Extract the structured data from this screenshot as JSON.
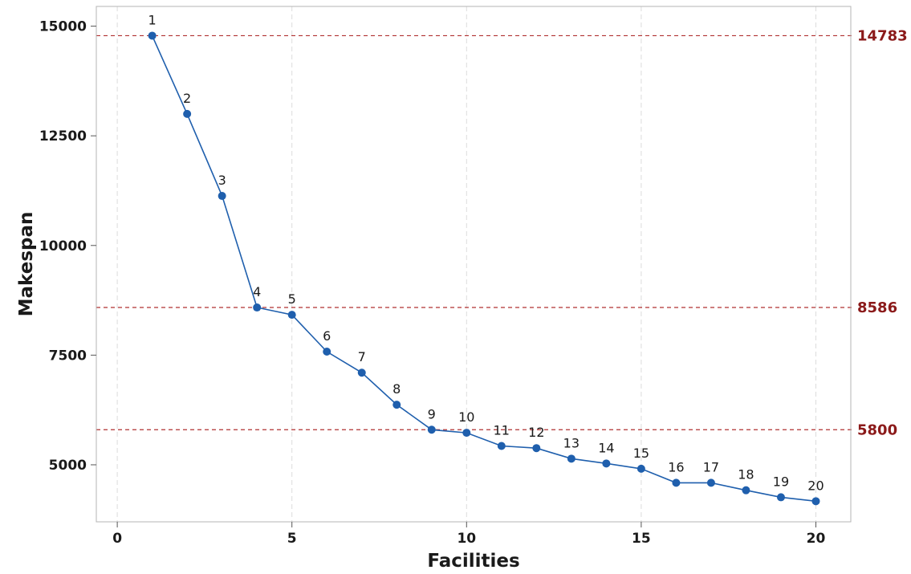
{
  "chart_data": {
    "type": "line",
    "title": "",
    "xlabel": "Facilities",
    "ylabel": "Makespan",
    "xlim": [
      -0.6,
      21.0
    ],
    "ylim": [
      3700,
      15450
    ],
    "x_ticks": [
      0,
      5,
      10,
      15,
      20
    ],
    "x_tick_labels": [
      "0",
      "5",
      "10",
      "15",
      "20"
    ],
    "y_ticks": [
      5000,
      7500,
      10000,
      12500,
      15000
    ],
    "y_tick_labels": [
      "5000",
      "7500",
      "10000",
      "12500",
      "15000"
    ],
    "grid": "vertical dashed",
    "series": [
      {
        "x": [
          1,
          2,
          3,
          4,
          5,
          6,
          7,
          8,
          9,
          10,
          11,
          12,
          13,
          14,
          15,
          16,
          17,
          18,
          19,
          20
        ],
        "y": [
          14783,
          13000,
          11130,
          8586,
          8420,
          7580,
          7100,
          6370,
          5800,
          5730,
          5430,
          5380,
          5140,
          5030,
          4910,
          4590,
          4590,
          4420,
          4260,
          4170
        ],
        "point_labels": [
          "1",
          "2",
          "3",
          "4",
          "5",
          "6",
          "7",
          "8",
          "9",
          "10",
          "11",
          "12",
          "13",
          "14",
          "15",
          "16",
          "17",
          "18",
          "19",
          "20"
        ],
        "color": "#1f5fad"
      }
    ],
    "reference_lines": [
      {
        "y": 14783,
        "label": "14783",
        "color": "#b03030"
      },
      {
        "y": 8586,
        "label": "8586",
        "color": "#b03030"
      },
      {
        "y": 5800,
        "label": "5800",
        "color": "#b03030"
      }
    ],
    "reference_label_color": "#8b1a1a"
  }
}
